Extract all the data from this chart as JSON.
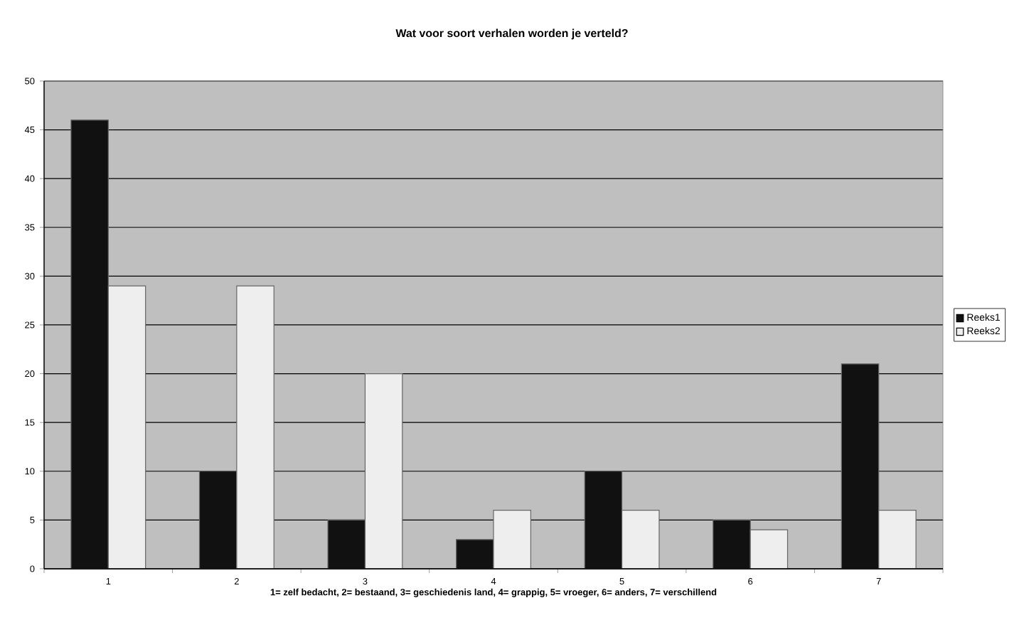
{
  "chart_data": {
    "type": "bar",
    "title": "Wat voor soort verhalen worden je verteld?",
    "xlabel": "1= zelf bedacht, 2= bestaand, 3= geschiedenis land, 4= grappig, 5= vroeger, 6= anders, 7= verschillend",
    "categories": [
      "1",
      "2",
      "3",
      "4",
      "5",
      "6",
      "7"
    ],
    "series": [
      {
        "name": "Reeks1",
        "color": "#111111",
        "values": [
          46,
          10,
          5,
          3,
          10,
          5,
          21
        ]
      },
      {
        "name": "Reeks2",
        "color": "#eeeeee",
        "values": [
          29,
          29,
          20,
          6,
          6,
          4,
          6
        ]
      }
    ],
    "ylim": [
      0,
      50
    ],
    "yticks": [
      0,
      5,
      10,
      15,
      20,
      25,
      30,
      35,
      40,
      45,
      50
    ],
    "grid": "y",
    "legend": "right"
  }
}
